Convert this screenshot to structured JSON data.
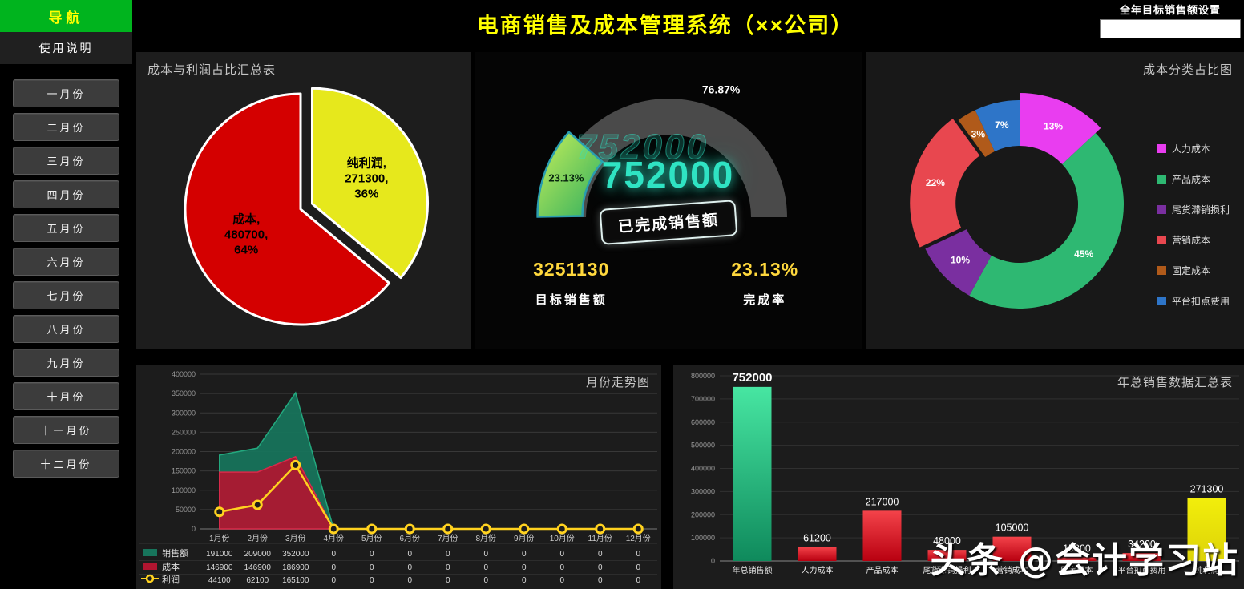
{
  "app": {
    "title": "电商销售及成本管理系统（××公司）"
  },
  "sidebar": {
    "nav_label": "导航",
    "usage_label": "使用说明",
    "months": [
      "一月份",
      "二月份",
      "三月份",
      "四月份",
      "五月份",
      "六月份",
      "七月份",
      "八月份",
      "九月份",
      "十月份",
      "十一月份",
      "十二月份"
    ]
  },
  "target_setting": {
    "label": "全年目标销售额设置",
    "value": ""
  },
  "watermark": "头条 @会计学习站",
  "chart_data": [
    {
      "type": "pie",
      "title": "成本与利润占比汇总表",
      "slices": [
        {
          "label": "纯利润",
          "value": 271300,
          "pct": "36%",
          "color": "#e6e81c",
          "exploded": true
        },
        {
          "label": "成本",
          "value": 480700,
          "pct": "64%",
          "color": "#d40000",
          "exploded": false
        }
      ]
    },
    {
      "type": "gauge",
      "completed_value": "752000",
      "completed_pct": 23.13,
      "completed_pct_label": "23.13%",
      "remaining_pct_label": "76.87%",
      "badge_label": "已完成销售额",
      "stats": [
        {
          "value": "3251130",
          "label": "目标销售额"
        },
        {
          "value": "23.13%",
          "label": "完成率"
        }
      ],
      "colors": {
        "track": "#4a4a4a",
        "fill_start": "#c8f05a",
        "fill_end": "#2fae5e",
        "fill_edge": "#2a9db0",
        "value_text": "#2fe3c3",
        "stat_value": "#ffd83d"
      }
    },
    {
      "type": "donut",
      "title": "成本分类占比图",
      "segments": [
        {
          "label": "人力成本",
          "pct": 13,
          "color": "#e93df0"
        },
        {
          "label": "产品成本",
          "pct": 45,
          "color": "#2eb872"
        },
        {
          "label": "尾货滞销损利",
          "pct": 10,
          "color": "#7a2fa0"
        },
        {
          "label": "营销成本",
          "pct": 22,
          "color": "#e8474f"
        },
        {
          "label": "固定成本",
          "pct": 3,
          "color": "#b05a1a"
        },
        {
          "label": "平台扣点费用",
          "pct": 7,
          "color": "#2e75c8"
        }
      ]
    },
    {
      "type": "line",
      "title": "月份走势图",
      "categories": [
        "1月份",
        "2月份",
        "3月份",
        "4月份",
        "5月份",
        "6月份",
        "7月份",
        "8月份",
        "9月份",
        "10月份",
        "11月份",
        "12月份"
      ],
      "ylim": [
        0,
        400000
      ],
      "ytick": 50000,
      "series": [
        {
          "name": "销售额",
          "kind": "area",
          "color": "#17745b",
          "edge": "#23a87e",
          "values": [
            191000,
            209000,
            352000,
            0,
            0,
            0,
            0,
            0,
            0,
            0,
            0,
            0
          ]
        },
        {
          "name": "成本",
          "kind": "area",
          "color": "#b01530",
          "edge": "#d8294a",
          "values": [
            146900,
            146900,
            186900,
            0,
            0,
            0,
            0,
            0,
            0,
            0,
            0,
            0
          ]
        },
        {
          "name": "利润",
          "kind": "line",
          "color": "#ffd21f",
          "edge": "#ffd21f",
          "values": [
            44100,
            62100,
            165100,
            0,
            0,
            0,
            0,
            0,
            0,
            0,
            0,
            0
          ]
        }
      ]
    },
    {
      "type": "bar",
      "title": "年总销售数据汇总表",
      "ylim": [
        0,
        800000
      ],
      "ytick": 100000,
      "categories": [
        "年总销售额",
        "人力成本",
        "产品成本",
        "尾货滞销损利",
        "营销成本",
        "固定成本",
        "平台扣点费用",
        "纯利润"
      ],
      "values": [
        752000,
        61200,
        217000,
        48000,
        105000,
        15300,
        34200,
        271300
      ],
      "bar_colors": [
        [
          "#47e6a2",
          "#0f8a5c"
        ],
        [
          "#f4434a",
          "#b80010"
        ],
        [
          "#f4434a",
          "#b80010"
        ],
        [
          "#f4434a",
          "#b80010"
        ],
        [
          "#f4434a",
          "#b80010"
        ],
        [
          "#f4434a",
          "#b80010"
        ],
        [
          "#f4434a",
          "#b80010"
        ],
        [
          "#f2ee0b",
          "#ddd308"
        ]
      ]
    }
  ]
}
